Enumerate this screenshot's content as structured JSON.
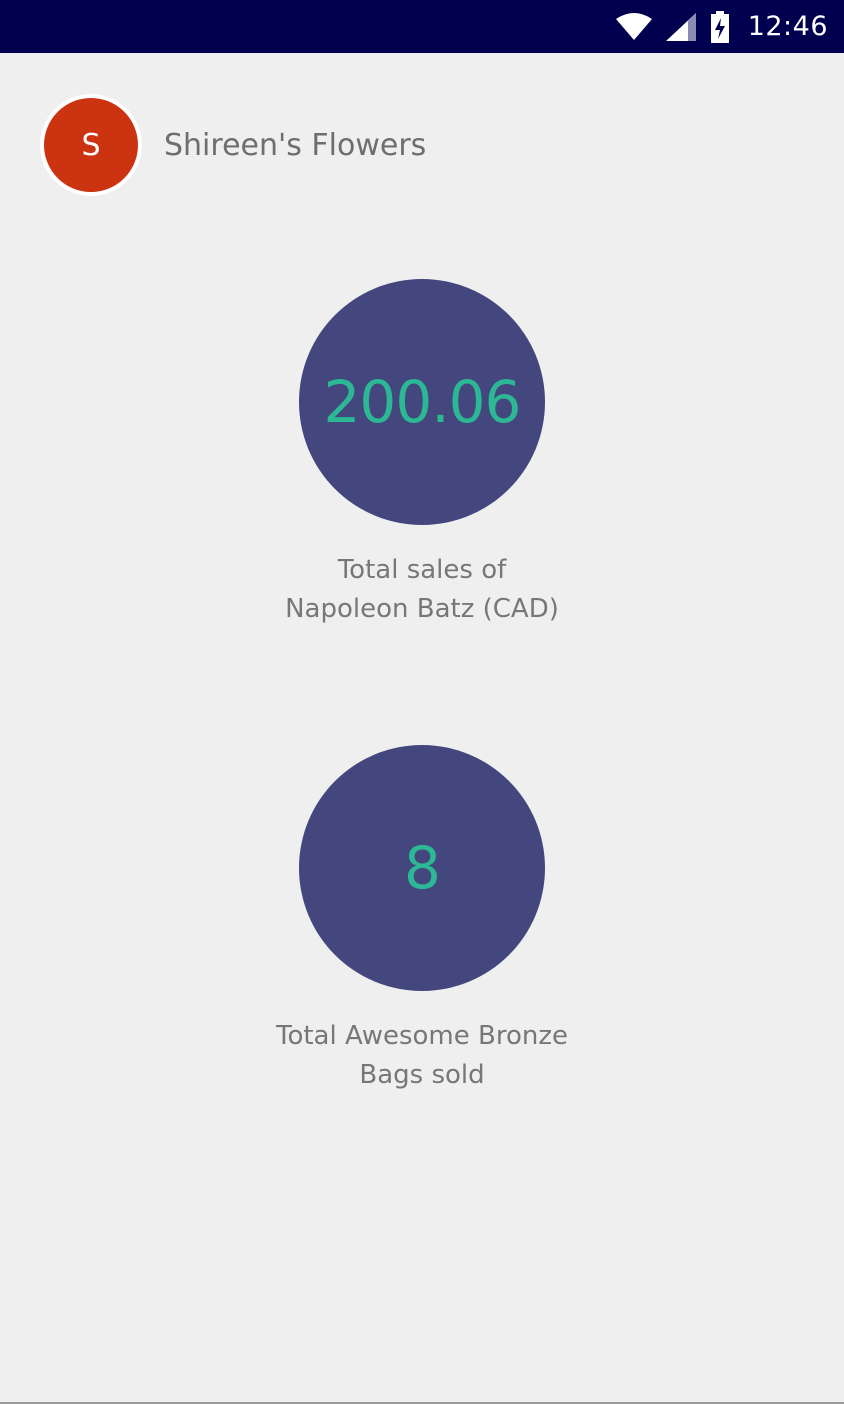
{
  "status_bar": {
    "time": "12:46",
    "icons": [
      "wifi-icon",
      "cellular-signal-icon",
      "battery-charging-icon"
    ],
    "background": "#00004f"
  },
  "header": {
    "avatar_letter": "S",
    "avatar_color": "#cc3311",
    "store_name": "Shireen's Flowers"
  },
  "stats": [
    {
      "value": "200.06",
      "label": "Total sales of Napoleon Batz (CAD)"
    },
    {
      "value": "8",
      "label": "Total Awesome Bronze Bags sold"
    }
  ],
  "colors": {
    "circle": "#43477e",
    "value_text": "#2cb894",
    "label_text": "#777777",
    "background": "#efefef"
  }
}
